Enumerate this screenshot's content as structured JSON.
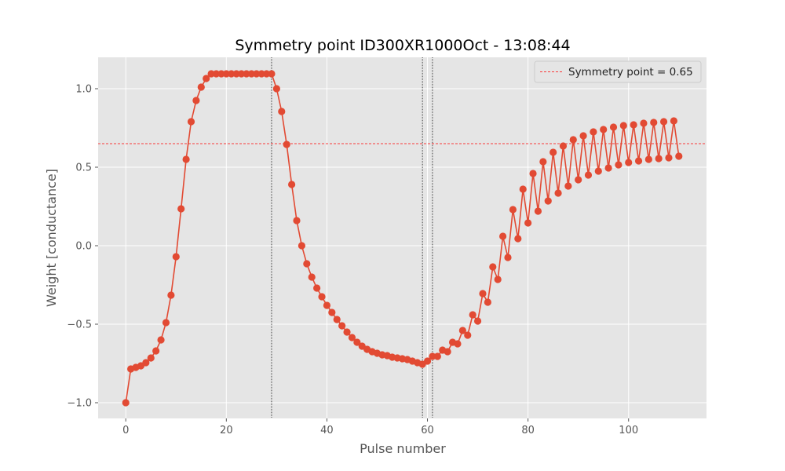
{
  "chart_data": {
    "type": "line",
    "title": "Symmetry point ID300XR1000Oct - 13:08:44",
    "xlabel": "Pulse number",
    "ylabel": "Weight [conductance]",
    "xlim": [
      -5.5,
      115.5
    ],
    "ylim": [
      -1.1,
      1.2
    ],
    "xticks": [
      0,
      20,
      40,
      60,
      80,
      100
    ],
    "yticks": [
      -1.0,
      -0.5,
      0.0,
      0.5,
      1.0
    ],
    "xtick_labels": [
      "0",
      "20",
      "40",
      "60",
      "80",
      "100"
    ],
    "ytick_labels": [
      "−1.0",
      "−0.5",
      "0.0",
      "0.5",
      "1.0"
    ],
    "grid": true,
    "legend_position": "top-right",
    "series": [
      {
        "color": "#E24A33",
        "marker": "circle",
        "x": [
          0,
          1,
          2,
          3,
          4,
          5,
          6,
          7,
          8,
          9,
          10,
          11,
          12,
          13,
          14,
          15,
          16,
          17,
          18,
          19,
          20,
          21,
          22,
          23,
          24,
          25,
          26,
          27,
          28,
          29,
          30,
          31,
          32,
          33,
          34,
          35,
          36,
          37,
          38,
          39,
          40,
          41,
          42,
          43,
          44,
          45,
          46,
          47,
          48,
          49,
          50,
          51,
          52,
          53,
          54,
          55,
          56,
          57,
          58,
          59,
          60,
          61,
          62,
          63,
          64,
          65,
          66,
          67,
          68,
          69,
          70,
          71,
          72,
          73,
          74,
          75,
          76,
          77,
          78,
          79,
          80,
          81,
          82,
          83,
          84,
          85,
          86,
          87,
          88,
          89,
          90,
          91,
          92,
          93,
          94,
          95,
          96,
          97,
          98,
          99,
          100,
          101,
          102,
          103,
          104,
          105,
          106,
          107,
          108,
          109,
          110
        ],
        "y": [
          -1.0,
          -0.785,
          -0.775,
          -0.765,
          -0.745,
          -0.715,
          -0.67,
          -0.6,
          -0.49,
          -0.315,
          -0.07,
          0.235,
          0.55,
          0.79,
          0.925,
          1.01,
          1.065,
          1.095,
          1.095,
          1.095,
          1.095,
          1.095,
          1.095,
          1.095,
          1.095,
          1.095,
          1.095,
          1.095,
          1.095,
          1.095,
          1.0,
          0.855,
          0.645,
          0.39,
          0.16,
          0.0,
          -0.115,
          -0.2,
          -0.27,
          -0.325,
          -0.38,
          -0.425,
          -0.47,
          -0.51,
          -0.55,
          -0.585,
          -0.615,
          -0.64,
          -0.66,
          -0.675,
          -0.685,
          -0.695,
          -0.7,
          -0.71,
          -0.715,
          -0.72,
          -0.725,
          -0.735,
          -0.745,
          -0.755,
          -0.735,
          -0.705,
          -0.705,
          -0.665,
          -0.675,
          -0.615,
          -0.625,
          -0.54,
          -0.57,
          -0.44,
          -0.48,
          -0.305,
          -0.36,
          -0.135,
          -0.215,
          0.06,
          -0.075,
          0.23,
          0.045,
          0.36,
          0.145,
          0.46,
          0.22,
          0.535,
          0.285,
          0.595,
          0.335,
          0.635,
          0.38,
          0.675,
          0.42,
          0.7,
          0.45,
          0.725,
          0.475,
          0.74,
          0.495,
          0.755,
          0.515,
          0.765,
          0.53,
          0.77,
          0.54,
          0.78,
          0.55,
          0.785,
          0.555,
          0.79,
          0.56,
          0.795,
          0.57
        ]
      }
    ],
    "reference_lines": {
      "horizontal": [
        {
          "y": 0.65,
          "color": "#ff0000",
          "label": "Symmetry point = 0.65"
        }
      ],
      "vertical": [
        {
          "x": 29,
          "color": "#000000"
        },
        {
          "x": 59,
          "color": "#000000"
        },
        {
          "x": 61,
          "color": "#000000"
        }
      ]
    },
    "legend": [
      {
        "label": "Symmetry point = 0.65",
        "color": "#ff0000",
        "style": "dashed"
      }
    ],
    "colors": {
      "plot_background": "#E5E5E5",
      "grid": "#ffffff",
      "series": "#E24A33"
    }
  }
}
